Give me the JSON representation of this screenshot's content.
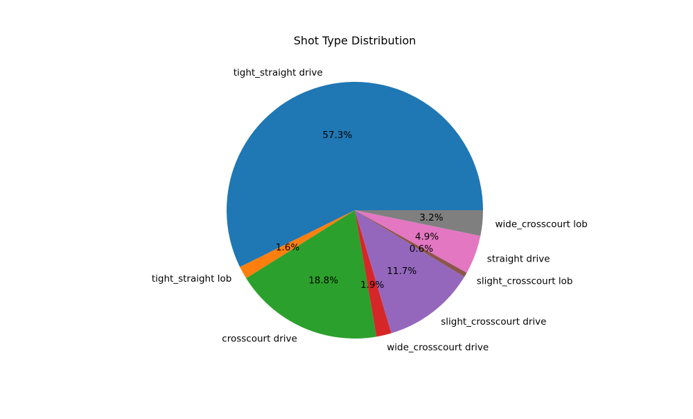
{
  "chart_data": {
    "type": "pie",
    "title": "Shot Type Distribution",
    "slices": [
      {
        "label": "tight_straight drive",
        "value": 57.3,
        "pct_label": "57.3%",
        "color": "#1f77b4"
      },
      {
        "label": "tight_straight lob",
        "value": 1.6,
        "pct_label": "1.6%",
        "color": "#ff7f0e"
      },
      {
        "label": "crosscourt drive",
        "value": 18.8,
        "pct_label": "18.8%",
        "color": "#2ca02c"
      },
      {
        "label": "wide_crosscourt drive",
        "value": 1.9,
        "pct_label": "1.9%",
        "color": "#d62728"
      },
      {
        "label": "slight_crosscourt drive",
        "value": 11.7,
        "pct_label": "11.7%",
        "color": "#9467bd"
      },
      {
        "label": "slight_crosscourt lob",
        "value": 0.6,
        "pct_label": "0.6%",
        "color": "#8c564b"
      },
      {
        "label": "straight drive",
        "value": 4.9,
        "pct_label": "4.9%",
        "color": "#e377c2"
      },
      {
        "label": "wide_crosscourt lob",
        "value": 3.2,
        "pct_label": "3.2%",
        "color": "#7f7f7f"
      }
    ],
    "start_angle_deg": 0,
    "direction": "counterclockwise",
    "legend": "none"
  }
}
